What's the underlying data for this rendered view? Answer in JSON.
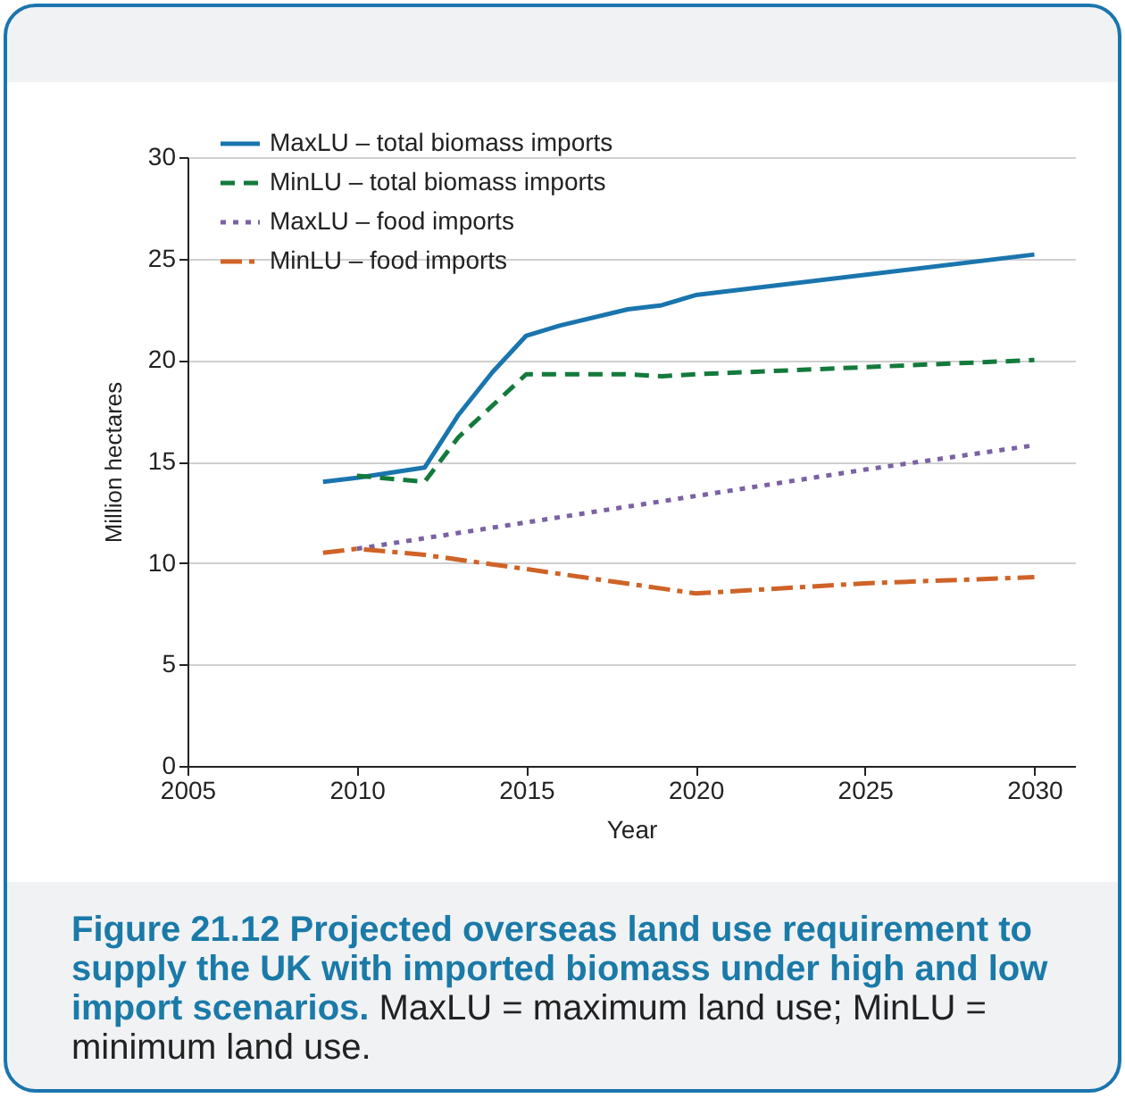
{
  "chart_data": {
    "type": "line",
    "title": "Figure 21.12 Projected overseas land use requirement to supply the UK with imported biomass under high and low import scenarios.",
    "annotations": [
      "MaxLU = maximum land use; MinLU = minimum land use."
    ],
    "xlabel": "Year",
    "ylabel": "Million hectares",
    "xlim": [
      2005,
      2031.2
    ],
    "xticks": [
      2005,
      2010,
      2015,
      2020,
      2025,
      2030
    ],
    "ylim": [
      0,
      30
    ],
    "yticks": [
      0,
      5,
      10,
      15,
      20,
      25,
      30
    ],
    "grid": "y",
    "legend": "top left",
    "series": [
      {
        "name": "MaxLU – total biomass imports",
        "color": "#1a75ae",
        "line_style": "solid",
        "x": [
          2009,
          2010,
          2012,
          2013,
          2014,
          2015,
          2016,
          2018,
          2019,
          2020,
          2030
        ],
        "values": [
          14.0,
          14.2,
          14.7,
          17.3,
          19.4,
          21.2,
          21.7,
          22.5,
          22.7,
          23.2,
          25.2
        ]
      },
      {
        "name": "MinLU – total biomass imports",
        "color": "#137a3b",
        "line_style": "dashed",
        "x": [
          2010,
          2012,
          2013,
          2015,
          2018,
          2019,
          2020,
          2030
        ],
        "values": [
          14.3,
          14.0,
          16.2,
          19.3,
          19.3,
          19.2,
          19.3,
          20.0
        ]
      },
      {
        "name": "MaxLU – food imports",
        "color": "#7b62a3",
        "line_style": "dotted",
        "x": [
          2010,
          2015,
          2020,
          2025,
          2030
        ],
        "values": [
          10.7,
          12.0,
          13.3,
          14.6,
          15.8
        ]
      },
      {
        "name": "MinLU – food imports",
        "color": "#cf6327",
        "line_style": "dashdot",
        "x": [
          2009,
          2010,
          2012,
          2015,
          2020,
          2025,
          2030
        ],
        "values": [
          10.5,
          10.7,
          10.4,
          9.7,
          8.5,
          9.0,
          9.3
        ]
      }
    ]
  }
}
